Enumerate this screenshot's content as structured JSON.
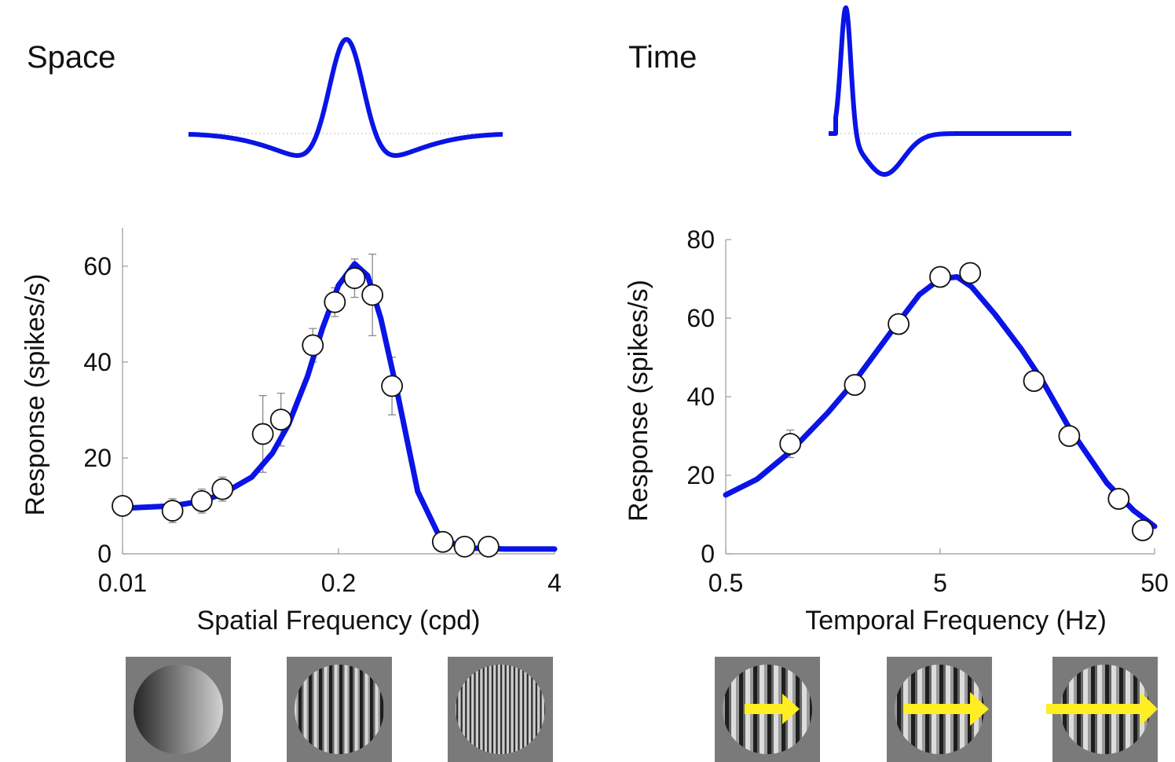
{
  "colors": {
    "fit": "#0a14e6",
    "marker_fill": "#ffffff",
    "marker_stroke": "#111111",
    "errorbar": "#888888",
    "axis": "#999999",
    "stim_bg": "#7a7a7a",
    "arrow": "#ffee22"
  },
  "space": {
    "heading": "Space",
    "kernel_shape": "difference-of-gaussians"
  },
  "time": {
    "heading": "Time",
    "kernel_shape": "biphasic temporal impulse response"
  },
  "chart_data": [
    {
      "type": "scatter",
      "xscale": "log",
      "xlabel": "Spatial Frequency (cpd)",
      "ylabel": "Response (spikes/s)",
      "xlim": [
        0.01,
        4
      ],
      "ylim": [
        0,
        68
      ],
      "xticks": [
        {
          "value": 0.01,
          "label": "0.01"
        },
        {
          "value": 0.2,
          "label": "0.2"
        },
        {
          "value": 4,
          "label": "4"
        }
      ],
      "yticks": [
        {
          "value": 0,
          "label": "0"
        },
        {
          "value": 20,
          "label": "20"
        },
        {
          "value": 40,
          "label": "40"
        },
        {
          "value": 60,
          "label": "60"
        }
      ],
      "series": [
        {
          "kind": "points",
          "x": [
            0.01,
            0.02,
            0.03,
            0.04,
            0.07,
            0.09,
            0.14,
            0.19,
            0.25,
            0.32,
            0.42,
            0.85,
            1.15,
            1.6
          ],
          "y": [
            10,
            9,
            11,
            13.5,
            25,
            28,
            43.5,
            52.5,
            57.5,
            54,
            35,
            2.5,
            1.5,
            1.5
          ],
          "err": [
            0,
            2.5,
            2.5,
            2.5,
            8,
            5.5,
            3.5,
            3,
            4,
            8.5,
            6,
            0,
            0,
            0
          ]
        },
        {
          "kind": "line",
          "x": [
            0.01,
            0.02,
            0.03,
            0.04,
            0.06,
            0.08,
            0.1,
            0.13,
            0.16,
            0.2,
            0.25,
            0.3,
            0.36,
            0.45,
            0.6,
            0.8,
            1.0,
            1.3,
            2.0,
            4.0
          ],
          "y": [
            9.5,
            10,
            11,
            12.5,
            16,
            21,
            27,
            37,
            47,
            56,
            60.5,
            58,
            49,
            34,
            13,
            4,
            2,
            1.2,
            1,
            1
          ]
        }
      ]
    },
    {
      "type": "scatter",
      "xscale": "log",
      "xlabel": "Temporal Frequency (Hz)",
      "ylabel": "Response (spikes/s)",
      "xlim": [
        0.5,
        50
      ],
      "ylim": [
        0,
        80
      ],
      "xticks": [
        {
          "value": 0.5,
          "label": "0.5"
        },
        {
          "value": 5,
          "label": "5"
        },
        {
          "value": 50,
          "label": "50"
        }
      ],
      "yticks": [
        {
          "value": 0,
          "label": "0"
        },
        {
          "value": 20,
          "label": "20"
        },
        {
          "value": 40,
          "label": "40"
        },
        {
          "value": 60,
          "label": "60"
        },
        {
          "value": 80,
          "label": "80"
        }
      ],
      "series": [
        {
          "kind": "points",
          "x": [
            1.0,
            2.0,
            3.2,
            5.0,
            6.9,
            13.7,
            20,
            34,
            44
          ],
          "y": [
            28,
            43,
            58.5,
            70.5,
            71.5,
            44,
            30,
            14,
            6
          ],
          "err": [
            3.5,
            0,
            0,
            0,
            0,
            0,
            0,
            0,
            0
          ]
        },
        {
          "kind": "line",
          "x": [
            0.5,
            0.7,
            1.0,
            1.5,
            2.0,
            3.0,
            4.0,
            5.0,
            6.0,
            7.0,
            9.0,
            12,
            15,
            20,
            30,
            40,
            50
          ],
          "y": [
            15,
            19,
            26,
            36,
            44,
            57,
            66,
            70,
            70.5,
            68,
            61,
            52,
            44,
            32,
            18,
            11,
            7
          ]
        }
      ]
    }
  ]
}
